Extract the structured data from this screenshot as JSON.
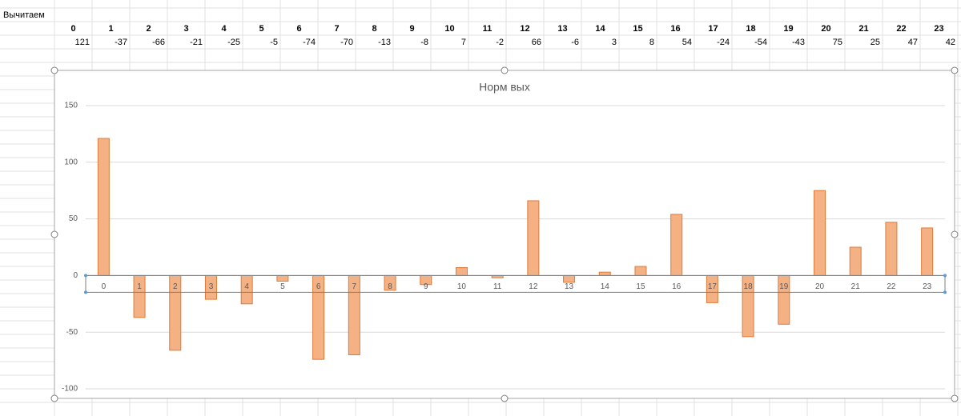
{
  "sheet": {
    "label": "Вычитаем",
    "header": [
      "0",
      "1",
      "2",
      "3",
      "4",
      "5",
      "6",
      "7",
      "8",
      "9",
      "10",
      "11",
      "12",
      "13",
      "14",
      "15",
      "16",
      "17",
      "18",
      "19",
      "20",
      "21",
      "22",
      "23"
    ],
    "values": [
      121,
      -37,
      -66,
      -21,
      -25,
      -5,
      -74,
      -70,
      -13,
      -8,
      7,
      -2,
      66,
      -6,
      3,
      8,
      54,
      -24,
      -54,
      -43,
      75,
      25,
      47,
      42
    ]
  },
  "chart_data": {
    "type": "bar",
    "title": "Норм вых",
    "categories": [
      "0",
      "1",
      "2",
      "3",
      "4",
      "5",
      "6",
      "7",
      "8",
      "9",
      "10",
      "11",
      "12",
      "13",
      "14",
      "15",
      "16",
      "17",
      "18",
      "19",
      "20",
      "21",
      "22",
      "23"
    ],
    "values": [
      121,
      -37,
      -66,
      -21,
      -25,
      -5,
      -74,
      -70,
      -13,
      -8,
      7,
      -2,
      66,
      -6,
      3,
      8,
      54,
      -24,
      -54,
      -43,
      75,
      25,
      47,
      42
    ],
    "color": "#f4b183",
    "edge_color": "#e07b39",
    "ylim": [
      -100,
      150
    ],
    "yticks": [
      -100,
      -50,
      0,
      50,
      100,
      150
    ],
    "grid": true
  }
}
